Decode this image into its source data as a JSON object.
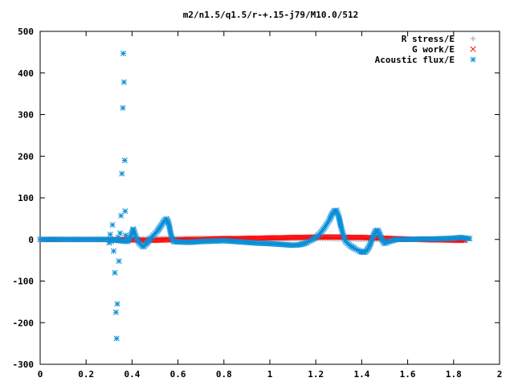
{
  "chart_data": {
    "type": "scatter",
    "title": "m2/n1.5/q1.5/r-+.15-j79/M10.0/512",
    "xlabel": "",
    "ylabel": "",
    "xlim": [
      0,
      2
    ],
    "ylim": [
      -300,
      500
    ],
    "x_ticks": [
      0,
      0.2,
      0.4,
      0.6,
      0.8,
      1,
      1.2,
      1.4,
      1.6,
      1.8,
      2
    ],
    "x_tick_labels": [
      "0",
      "0.2",
      "0.4",
      "0.6",
      "0.8",
      "1",
      "1.2",
      "1.4",
      "1.6",
      "1.8",
      "2"
    ],
    "y_ticks": [
      -300,
      -200,
      -100,
      0,
      100,
      200,
      300,
      400,
      500
    ],
    "y_tick_labels": [
      "-300",
      "-200",
      "-100",
      "0",
      "100",
      "200",
      "300",
      "400",
      "500"
    ],
    "grid": false,
    "legend_position": "top-right",
    "series": [
      {
        "name": "R stress/E",
        "marker": "plus",
        "color": "#a0a0a0",
        "points": [
          [
            0.0,
            0
          ],
          [
            0.1,
            0
          ],
          [
            0.2,
            0
          ],
          [
            0.3,
            0
          ],
          [
            0.35,
            1
          ],
          [
            0.4,
            2
          ],
          [
            0.45,
            2
          ],
          [
            0.5,
            3
          ],
          [
            0.55,
            3
          ],
          [
            0.6,
            3
          ],
          [
            0.65,
            3
          ],
          [
            0.7,
            4
          ],
          [
            0.75,
            3
          ],
          [
            0.8,
            3
          ],
          [
            0.85,
            2
          ],
          [
            0.9,
            2
          ],
          [
            0.95,
            1
          ],
          [
            1.0,
            1
          ],
          [
            1.05,
            1
          ],
          [
            1.1,
            1
          ],
          [
            1.15,
            1
          ],
          [
            1.2,
            2
          ],
          [
            1.25,
            2
          ],
          [
            1.3,
            1
          ],
          [
            1.35,
            1
          ],
          [
            1.4,
            0
          ],
          [
            1.45,
            0
          ],
          [
            1.5,
            0
          ],
          [
            1.55,
            0
          ],
          [
            1.6,
            0
          ],
          [
            1.65,
            0
          ],
          [
            1.7,
            0
          ],
          [
            1.75,
            0
          ],
          [
            1.8,
            0
          ],
          [
            1.85,
            0
          ]
        ]
      },
      {
        "name": "G work/E",
        "marker": "cross",
        "color": "#ff0000",
        "points": [
          [
            0.0,
            0
          ],
          [
            0.1,
            0
          ],
          [
            0.2,
            0
          ],
          [
            0.3,
            0
          ],
          [
            0.35,
            -1
          ],
          [
            0.4,
            -1
          ],
          [
            0.45,
            -2
          ],
          [
            0.5,
            -2
          ],
          [
            0.55,
            -1
          ],
          [
            0.6,
            -1
          ],
          [
            0.65,
            0
          ],
          [
            0.7,
            0
          ],
          [
            0.75,
            1
          ],
          [
            0.8,
            2
          ],
          [
            0.85,
            2
          ],
          [
            0.9,
            3
          ],
          [
            0.95,
            3
          ],
          [
            1.0,
            4
          ],
          [
            1.05,
            4
          ],
          [
            1.1,
            5
          ],
          [
            1.15,
            5
          ],
          [
            1.2,
            6
          ],
          [
            1.25,
            6
          ],
          [
            1.3,
            6
          ],
          [
            1.35,
            5
          ],
          [
            1.4,
            5
          ],
          [
            1.45,
            4
          ],
          [
            1.5,
            3
          ],
          [
            1.55,
            2
          ],
          [
            1.6,
            1
          ],
          [
            1.65,
            0
          ],
          [
            1.7,
            -1
          ],
          [
            1.75,
            -1
          ],
          [
            1.8,
            -2
          ],
          [
            1.85,
            -2
          ]
        ]
      },
      {
        "name": "Acoustic flux/E",
        "marker": "star",
        "color": "#0a8fd8",
        "points": [
          [
            0.0,
            0
          ],
          [
            0.05,
            0
          ],
          [
            0.1,
            0
          ],
          [
            0.15,
            0
          ],
          [
            0.2,
            0
          ],
          [
            0.25,
            0
          ],
          [
            0.3,
            0
          ],
          [
            0.3,
            -8
          ],
          [
            0.305,
            12
          ],
          [
            0.31,
            -5
          ],
          [
            0.315,
            35
          ],
          [
            0.32,
            -28
          ],
          [
            0.325,
            -80
          ],
          [
            0.33,
            -175
          ],
          [
            0.333,
            -238
          ],
          [
            0.336,
            -155
          ],
          [
            0.34,
            5
          ],
          [
            0.343,
            -52
          ],
          [
            0.348,
            15
          ],
          [
            0.352,
            57
          ],
          [
            0.356,
            158
          ],
          [
            0.36,
            316
          ],
          [
            0.362,
            447
          ],
          [
            0.365,
            378
          ],
          [
            0.368,
            190
          ],
          [
            0.37,
            68
          ],
          [
            0.372,
            10
          ],
          [
            0.38,
            -5
          ],
          [
            0.385,
            0
          ],
          [
            0.39,
            5
          ],
          [
            0.4,
            15
          ],
          [
            0.405,
            25
          ],
          [
            0.41,
            18
          ],
          [
            0.42,
            2
          ],
          [
            0.43,
            -8
          ],
          [
            0.44,
            -14
          ],
          [
            0.45,
            -18
          ],
          [
            0.46,
            -12
          ],
          [
            0.47,
            -5
          ],
          [
            0.48,
            2
          ],
          [
            0.49,
            8
          ],
          [
            0.5,
            14
          ],
          [
            0.51,
            20
          ],
          [
            0.52,
            28
          ],
          [
            0.53,
            36
          ],
          [
            0.54,
            45
          ],
          [
            0.55,
            50
          ],
          [
            0.56,
            38
          ],
          [
            0.57,
            10
          ],
          [
            0.58,
            -5
          ],
          [
            0.6,
            -6
          ],
          [
            0.65,
            -7
          ],
          [
            0.7,
            -5
          ],
          [
            0.75,
            -4
          ],
          [
            0.8,
            -3
          ],
          [
            0.85,
            -5
          ],
          [
            0.9,
            -7
          ],
          [
            0.95,
            -9
          ],
          [
            1.0,
            -10
          ],
          [
            1.05,
            -12
          ],
          [
            1.1,
            -14
          ],
          [
            1.13,
            -13
          ],
          [
            1.16,
            -8
          ],
          [
            1.18,
            -2
          ],
          [
            1.2,
            5
          ],
          [
            1.22,
            15
          ],
          [
            1.24,
            30
          ],
          [
            1.26,
            48
          ],
          [
            1.27,
            60
          ],
          [
            1.28,
            68
          ],
          [
            1.29,
            70
          ],
          [
            1.3,
            55
          ],
          [
            1.31,
            30
          ],
          [
            1.32,
            10
          ],
          [
            1.33,
            -5
          ],
          [
            1.34,
            -10
          ],
          [
            1.35,
            -15
          ],
          [
            1.37,
            -22
          ],
          [
            1.39,
            -28
          ],
          [
            1.4,
            -30
          ],
          [
            1.41,
            -31
          ],
          [
            1.42,
            -28
          ],
          [
            1.43,
            -20
          ],
          [
            1.44,
            -8
          ],
          [
            1.45,
            8
          ],
          [
            1.46,
            20
          ],
          [
            1.47,
            22
          ],
          [
            1.48,
            10
          ],
          [
            1.49,
            -2
          ],
          [
            1.5,
            -10
          ],
          [
            1.52,
            -5
          ],
          [
            1.55,
            0
          ],
          [
            1.6,
            0
          ],
          [
            1.65,
            1
          ],
          [
            1.7,
            1
          ],
          [
            1.75,
            2
          ],
          [
            1.8,
            3
          ],
          [
            1.83,
            5
          ],
          [
            1.85,
            3
          ],
          [
            1.87,
            2
          ]
        ]
      }
    ]
  }
}
